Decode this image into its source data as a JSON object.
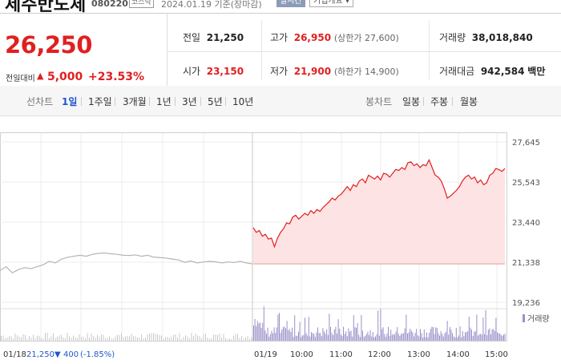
{
  "header": {
    "company_name": "제주반도체",
    "code": "080220",
    "market_badge": "코스닥",
    "date_info": "2024.01.19 기준(장마감)",
    "realtime_label": "실시간",
    "corp_info_label": "기업개요 ▾"
  },
  "price": {
    "current": "26,250",
    "change_label": "전일대비",
    "change_arrow": "▲",
    "change_value": "5,000",
    "change_percent": "+23.53%"
  },
  "stats": {
    "prev_close": {
      "label": "전일",
      "value": "21,250"
    },
    "open": {
      "label": "시가",
      "value": "23,150"
    },
    "high": {
      "label": "고가",
      "value": "26,950",
      "sub": "(상한가 27,600)"
    },
    "low": {
      "label": "저가",
      "value": "21,900",
      "sub": "(하한가 14,900)"
    },
    "volume": {
      "label": "거래량",
      "value": "38,018,840"
    },
    "amount": {
      "label": "거래대금",
      "value": "942,584",
      "unit": "백만"
    }
  },
  "toolbar": {
    "line_label": "선차트",
    "periods": [
      "1일",
      "1주일",
      "3개월",
      "1년",
      "3년",
      "5년",
      "10년"
    ],
    "candle_label": "봉차트",
    "candles": [
      "일봉",
      "주봉",
      "월봉"
    ],
    "active_period": "1일"
  },
  "chart_data": {
    "type": "line",
    "y_ticks": [
      "27,645",
      "25,543",
      "23,440",
      "21,338",
      "19,236"
    ],
    "ylim": [
      19236,
      27645
    ],
    "x_ticks": [
      "01/18",
      "01/19",
      "10:00",
      "11:00",
      "12:00",
      "13:00",
      "14:00",
      "15:00"
    ],
    "volume_legend": "거래량",
    "prev_day": {
      "date": "01/18",
      "close": "21,250",
      "change_arrow": "▼",
      "change": "400",
      "change_percent": "(-1.85%)"
    },
    "reference_price": 21250,
    "colors": {
      "today": "#e02020",
      "prev": "#b4b4b4",
      "volume": "#9b8fc9",
      "area": "#fde3e3"
    },
    "series": [
      {
        "day": "01/18",
        "values": [
          20900,
          21100,
          20780,
          20950,
          21050,
          21000,
          21100,
          21200,
          21380,
          21300,
          21500,
          21600,
          21650,
          21700,
          21650,
          21750,
          21800,
          21820,
          21780,
          21750,
          21700,
          21690,
          21720,
          21650,
          21700,
          21600,
          21580,
          21550,
          21500,
          21450,
          21330,
          21400,
          21300,
          21350,
          21380,
          21360,
          21300,
          21350,
          21320,
          21380,
          21300,
          21250
        ]
      },
      {
        "day": "01/19",
        "values": [
          23150,
          22900,
          23000,
          22700,
          22800,
          22550,
          22600,
          22150,
          22600,
          22900,
          23100,
          23400,
          23350,
          23700,
          23800,
          23600,
          23750,
          23900,
          23800,
          24050,
          23900,
          24100,
          24000,
          24200,
          24350,
          24500,
          24700,
          24600,
          24800,
          24900,
          25100,
          25300,
          25100,
          25400,
          25300,
          25600,
          25700,
          25500,
          25900,
          25800,
          25700,
          25850,
          25650,
          26000,
          25950,
          25800,
          26000,
          26200,
          26150,
          26300,
          26200,
          26550,
          26600,
          26400,
          26500,
          26300,
          26450,
          26400,
          26700,
          26300,
          25900,
          25800,
          25600,
          25200,
          24700,
          24800,
          24950,
          25100,
          25300,
          25600,
          25800,
          25900,
          25700,
          25800,
          25500,
          25650,
          25400,
          25500,
          25900,
          26000,
          26250,
          26200,
          26100,
          26250
        ]
      }
    ]
  }
}
